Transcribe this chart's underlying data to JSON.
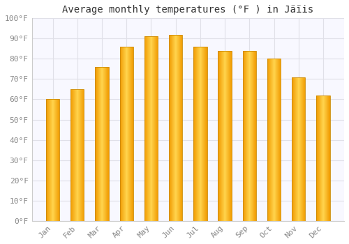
{
  "title": "Average monthly temperatures (°F ) in Jäïis",
  "months": [
    "Jan",
    "Feb",
    "Mar",
    "Apr",
    "May",
    "Jun",
    "Jul",
    "Aug",
    "Sep",
    "Oct",
    "Nov",
    "Dec"
  ],
  "values": [
    60,
    65,
    76,
    86,
    91,
    92,
    86,
    84,
    84,
    80,
    71,
    62
  ],
  "bar_color_center": "#FFD44D",
  "bar_color_edge": "#F5A800",
  "bar_border_color": "#CC8800",
  "ylim": [
    0,
    100
  ],
  "yticks": [
    0,
    10,
    20,
    30,
    40,
    50,
    60,
    70,
    80,
    90,
    100
  ],
  "ytick_labels": [
    "0°F",
    "10°F",
    "20°F",
    "30°F",
    "40°F",
    "50°F",
    "60°F",
    "70°F",
    "80°F",
    "90°F",
    "100°F"
  ],
  "background_color": "#ffffff",
  "plot_bg_color": "#f8f8ff",
  "grid_color": "#e0e0e8",
  "title_fontsize": 10,
  "tick_fontsize": 8,
  "bar_width": 0.55
}
